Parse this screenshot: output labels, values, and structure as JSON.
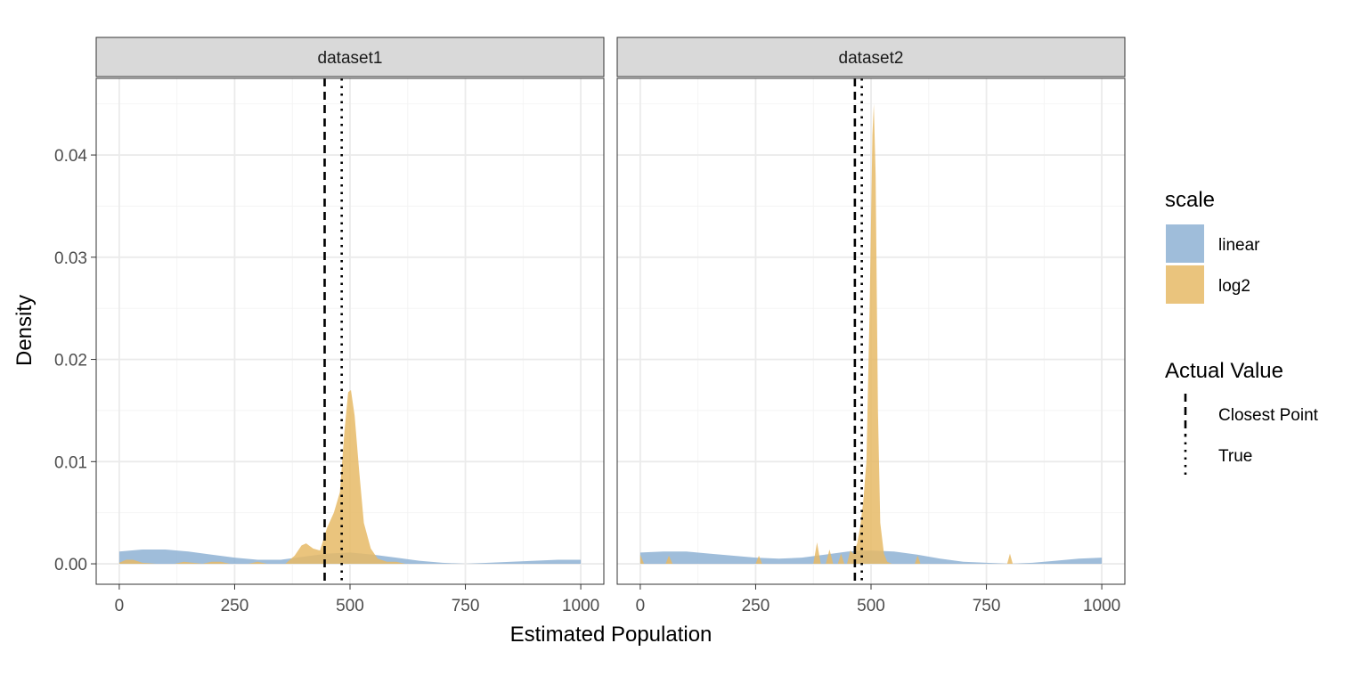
{
  "chart_data": {
    "type": "area",
    "xlabel": "Estimated Population",
    "ylabel": "Density",
    "xlim": [
      -50,
      1050
    ],
    "ylim": [
      -0.002,
      0.0475
    ],
    "x_ticks": [
      0,
      250,
      500,
      750,
      1000
    ],
    "x_tick_labels": [
      "0",
      "250",
      "500",
      "750",
      "1000"
    ],
    "y_ticks": [
      0.0,
      0.01,
      0.02,
      0.03,
      0.04
    ],
    "y_tick_labels": [
      "0.00",
      "0.01",
      "0.02",
      "0.03",
      "0.04"
    ],
    "grid": true,
    "legend_position": "right",
    "legends": [
      {
        "title": "scale",
        "entries": [
          {
            "label": "linear",
            "color": "#8eb1d4"
          },
          {
            "label": "log2",
            "color": "#e6ba66"
          }
        ]
      },
      {
        "title": "Actual Value",
        "entries": [
          {
            "label": "Closest Point",
            "linetype": "dashed"
          },
          {
            "label": "True",
            "linetype": "dotted"
          }
        ]
      }
    ],
    "facets": [
      {
        "label": "dataset1",
        "vlines": {
          "closest_point": 445,
          "true": 482
        },
        "series": [
          {
            "name": "linear",
            "color": "#8eb1d4",
            "points": [
              [
                0,
                0.0012
              ],
              [
                50,
                0.0014
              ],
              [
                100,
                0.0014
              ],
              [
                150,
                0.0012
              ],
              [
                200,
                0.0009
              ],
              [
                250,
                0.0006
              ],
              [
                300,
                0.0004
              ],
              [
                350,
                0.0004
              ],
              [
                400,
                0.0007
              ],
              [
                450,
                0.001
              ],
              [
                500,
                0.0011
              ],
              [
                550,
                0.0009
              ],
              [
                600,
                0.0006
              ],
              [
                650,
                0.0003
              ],
              [
                700,
                0.0001
              ],
              [
                750,
                0.0
              ],
              [
                800,
                0.0001
              ],
              [
                850,
                0.0002
              ],
              [
                900,
                0.0003
              ],
              [
                950,
                0.0004
              ],
              [
                1000,
                0.0004
              ]
            ]
          },
          {
            "name": "log2",
            "color": "#e6ba66",
            "points": [
              [
                0,
                0.0001
              ],
              [
                15,
                0.0004
              ],
              [
                30,
                0.0004
              ],
              [
                50,
                0.0001
              ],
              [
                80,
                0.0
              ],
              [
                120,
                0.0
              ],
              [
                140,
                0.0002
              ],
              [
                160,
                0.0001
              ],
              [
                180,
                0.0
              ],
              [
                200,
                0.0002
              ],
              [
                220,
                0.0002
              ],
              [
                240,
                0.0
              ],
              [
                280,
                0.0
              ],
              [
                300,
                0.0002
              ],
              [
                320,
                0.0
              ],
              [
                360,
                0.0
              ],
              [
                380,
                0.0008
              ],
              [
                395,
                0.0018
              ],
              [
                405,
                0.002
              ],
              [
                420,
                0.0015
              ],
              [
                435,
                0.0013
              ],
              [
                450,
                0.0035
              ],
              [
                465,
                0.005
              ],
              [
                478,
                0.007
              ],
              [
                488,
                0.013
              ],
              [
                496,
                0.0168
              ],
              [
                502,
                0.017
              ],
              [
                510,
                0.0145
              ],
              [
                520,
                0.009
              ],
              [
                530,
                0.004
              ],
              [
                545,
                0.0015
              ],
              [
                560,
                0.0005
              ],
              [
                580,
                0.0002
              ],
              [
                600,
                0.0002
              ],
              [
                620,
                0.0
              ],
              [
                1000,
                0.0
              ]
            ]
          }
        ]
      },
      {
        "label": "dataset2",
        "vlines": {
          "closest_point": 465,
          "true": 480
        },
        "series": [
          {
            "name": "linear",
            "color": "#8eb1d4",
            "points": [
              [
                0,
                0.0011
              ],
              [
                50,
                0.0012
              ],
              [
                100,
                0.0012
              ],
              [
                150,
                0.001
              ],
              [
                200,
                0.0008
              ],
              [
                250,
                0.0006
              ],
              [
                300,
                0.0005
              ],
              [
                350,
                0.0006
              ],
              [
                400,
                0.0009
              ],
              [
                450,
                0.0012
              ],
              [
                500,
                0.0013
              ],
              [
                550,
                0.0012
              ],
              [
                600,
                0.0009
              ],
              [
                650,
                0.0005
              ],
              [
                700,
                0.0002
              ],
              [
                750,
                0.0001
              ],
              [
                800,
                0.0
              ],
              [
                850,
                0.0001
              ],
              [
                900,
                0.0003
              ],
              [
                950,
                0.0005
              ],
              [
                1000,
                0.0006
              ]
            ]
          },
          {
            "name": "log2",
            "color": "#e6ba66",
            "points": [
              [
                0,
                0.0009
              ],
              [
                8,
                0.0
              ],
              [
                55,
                0.0
              ],
              [
                62,
                0.0008
              ],
              [
                70,
                0.0
              ],
              [
                250,
                0.0
              ],
              [
                257,
                0.0008
              ],
              [
                264,
                0.0
              ],
              [
                375,
                0.0
              ],
              [
                383,
                0.0021
              ],
              [
                391,
                0.0
              ],
              [
                402,
                0.0
              ],
              [
                410,
                0.0014
              ],
              [
                418,
                0.0
              ],
              [
                428,
                0.0
              ],
              [
                435,
                0.001
              ],
              [
                442,
                0.0
              ],
              [
                448,
                0.0
              ],
              [
                455,
                0.0013
              ],
              [
                462,
                0.001
              ],
              [
                470,
                0.002
              ],
              [
                476,
                0.0035
              ],
              [
                483,
                0.006
              ],
              [
                490,
                0.01
              ],
              [
                497,
                0.025
              ],
              [
                503,
                0.042
              ],
              [
                506,
                0.045
              ],
              [
                510,
                0.038
              ],
              [
                515,
                0.015
              ],
              [
                520,
                0.004
              ],
              [
                528,
                0.001
              ],
              [
                535,
                0.0002
              ],
              [
                545,
                0.0
              ],
              [
                595,
                0.0
              ],
              [
                601,
                0.0008
              ],
              [
                607,
                0.0
              ],
              [
                795,
                0.0
              ],
              [
                801,
                0.001
              ],
              [
                807,
                0.0
              ],
              [
                1000,
                0.0
              ]
            ]
          }
        ]
      }
    ]
  }
}
